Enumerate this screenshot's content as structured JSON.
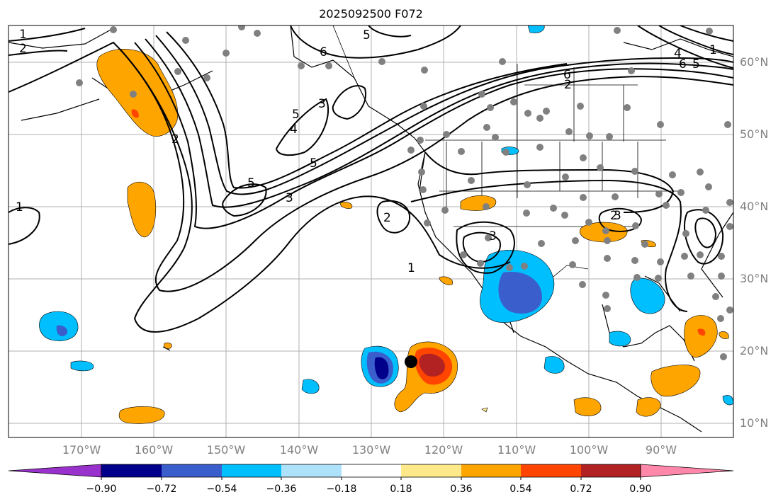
{
  "title": "2025092500 F072",
  "lat_labels": [
    "60°N",
    "50°N",
    "40°N",
    "30°N",
    "20°N",
    "10°N"
  ],
  "lon_labels": [
    "170°W",
    "160°W",
    "150°W",
    "140°W",
    "130°W",
    "120°W",
    "110°W",
    "100°W",
    "90°W"
  ],
  "colorbar": {
    "ticks": [
      "−0.90",
      "−0.72",
      "−0.54",
      "−0.36",
      "−0.18",
      "0.18",
      "0.36",
      "0.54",
      "0.72",
      "0.90"
    ],
    "colors": [
      "#9932cc",
      "#00008b",
      "#3a5fcd",
      "#00bfff",
      "#aee2fb",
      "#ffffff",
      "#fde98a",
      "#ffa500",
      "#ff4500",
      "#b22222",
      "#ff88aa"
    ]
  },
  "contour_labels": [
    "1",
    "2",
    "6",
    "5",
    "3",
    "4",
    "5",
    "2",
    "5",
    "3",
    "3",
    "5",
    "1",
    "2",
    "3",
    "1",
    "2",
    "6",
    "2",
    "5",
    "6",
    "4",
    "1"
  ],
  "colors": {
    "negative_light": "#aee2fb",
    "negative_mid": "#00bfff",
    "negative_strong": "#3a5fcd",
    "negative_extreme": "#00008b",
    "positive_light": "#fde98a",
    "positive_mid": "#ffa500",
    "positive_strong": "#ff4500",
    "positive_extreme": "#b22222",
    "station": "#808080"
  }
}
